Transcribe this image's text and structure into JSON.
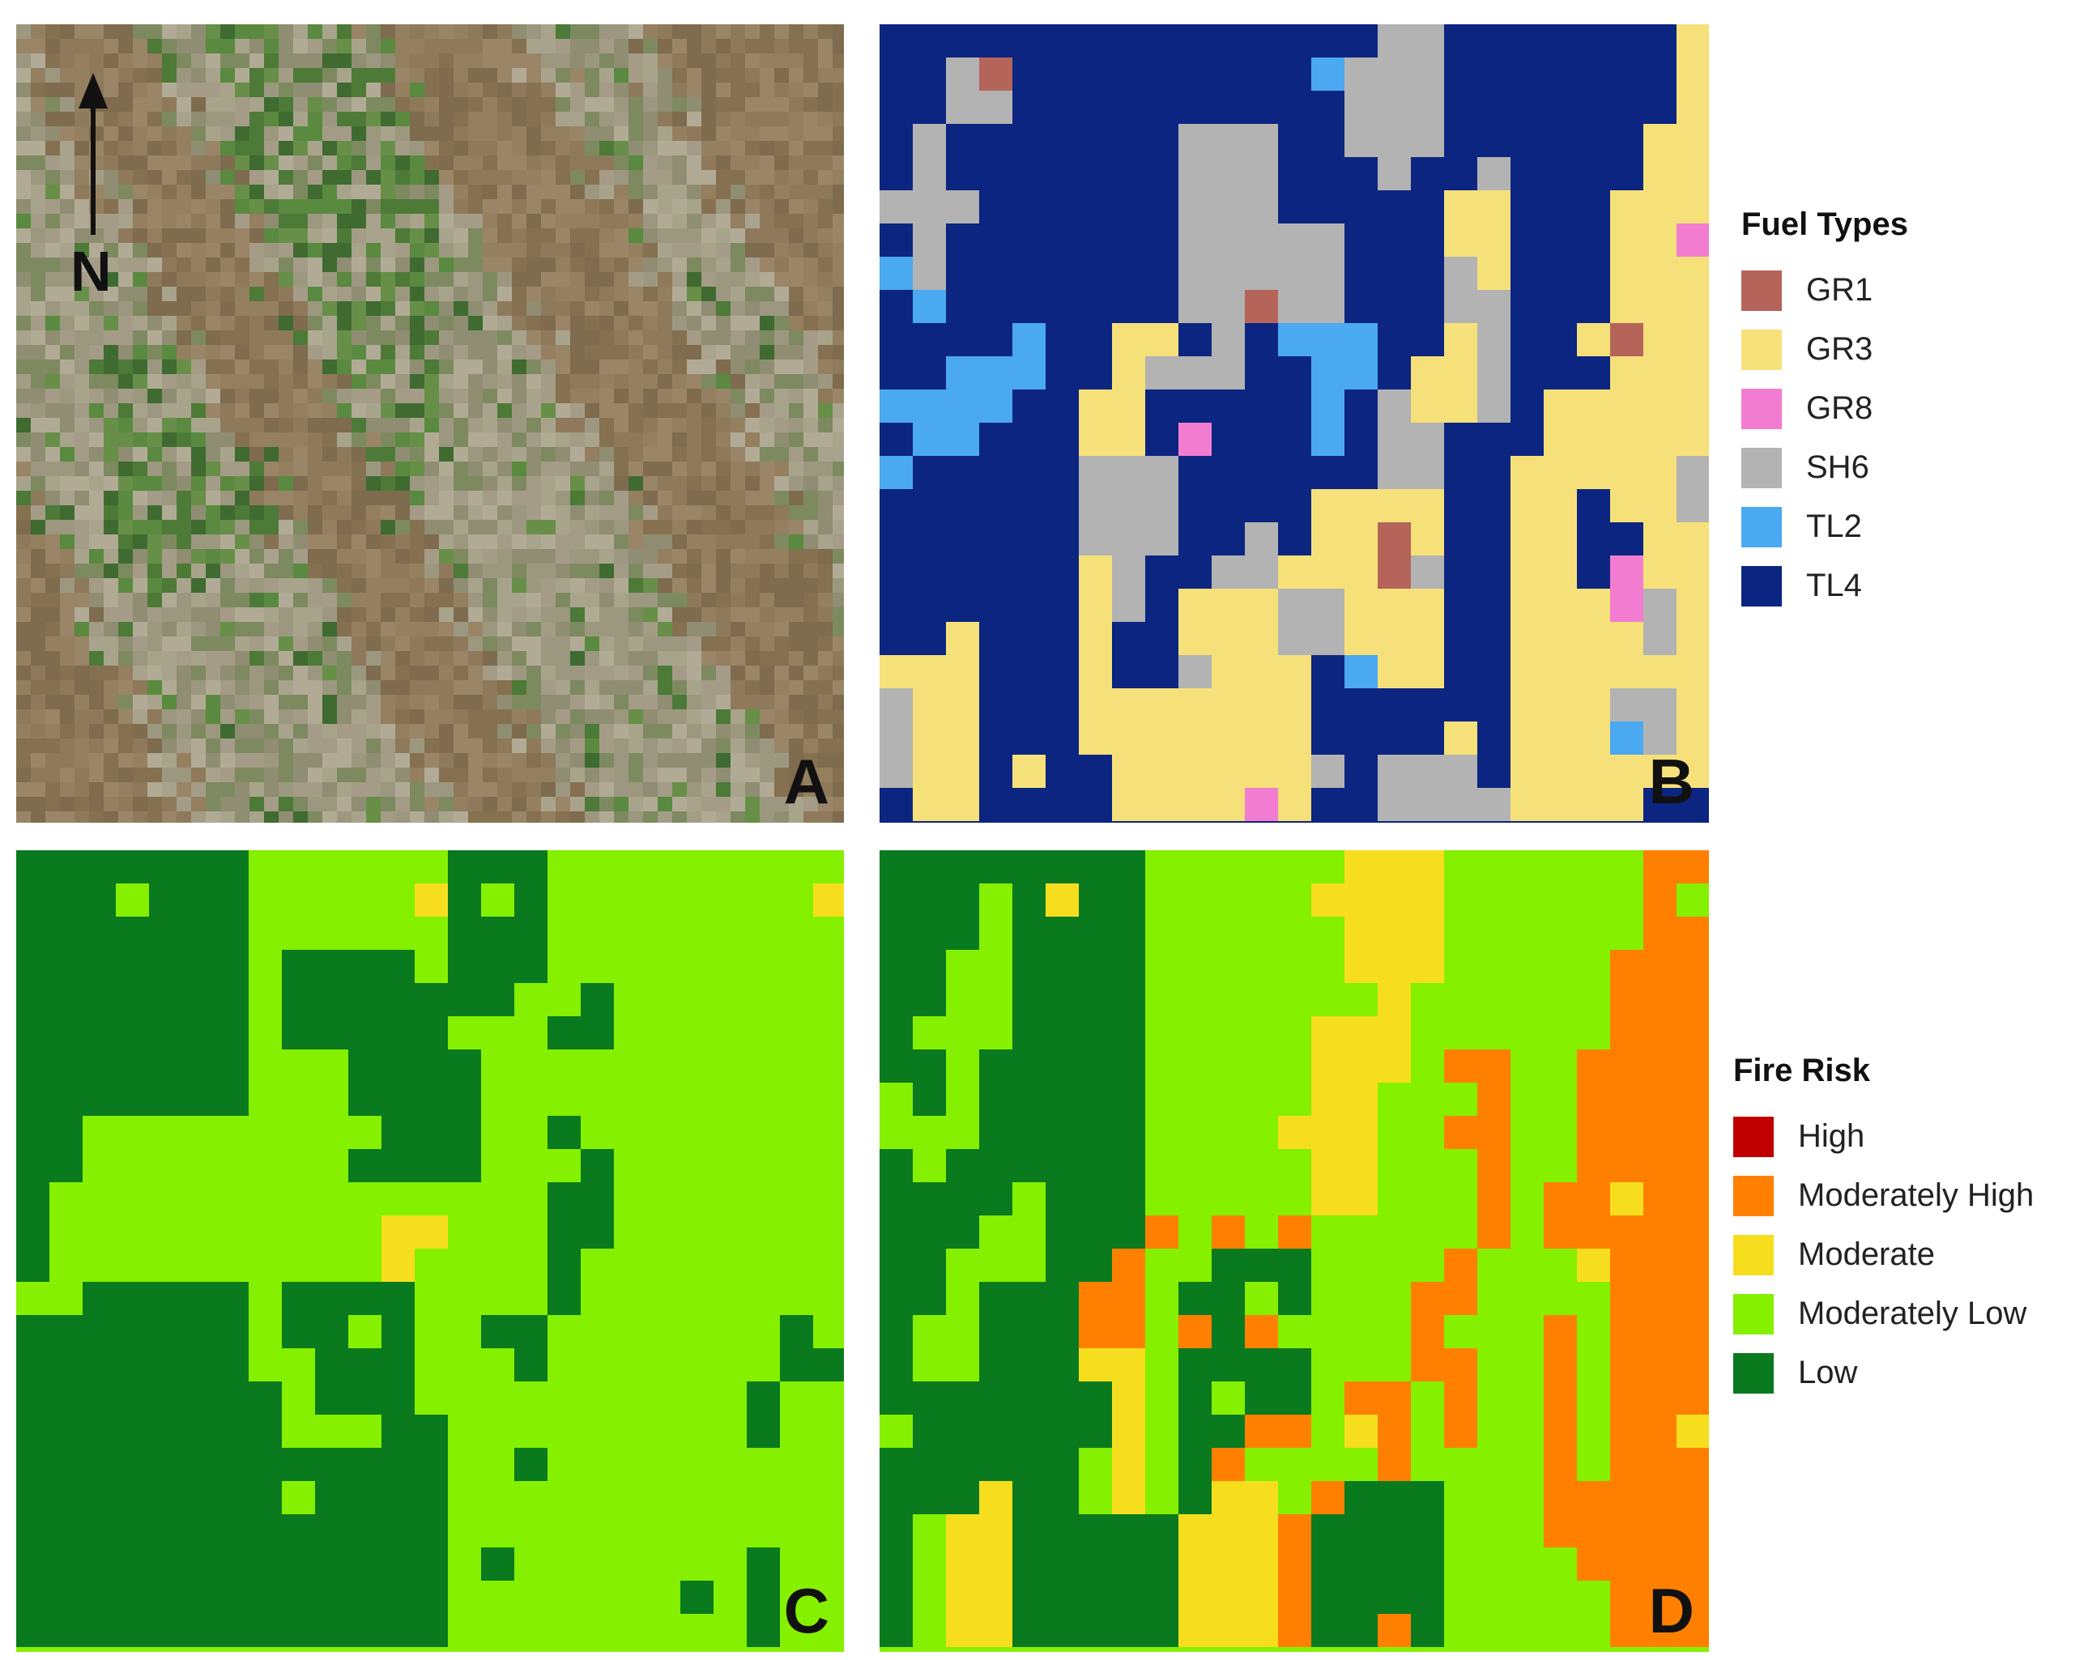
{
  "panels": {
    "a": {
      "label": "A",
      "north": "N"
    },
    "b": {
      "label": "B"
    },
    "c": {
      "label": "C"
    },
    "d": {
      "label": "D"
    }
  },
  "fuel_legend": {
    "title": "Fuel Types",
    "items": [
      {
        "label": "GR1",
        "color": "#b5645a"
      },
      {
        "label": "GR3",
        "color": "#f6e07a"
      },
      {
        "label": "GR8",
        "color": "#f27dd0"
      },
      {
        "label": "SH6",
        "color": "#b3b3b3"
      },
      {
        "label": "TL2",
        "color": "#4aa9f0"
      },
      {
        "label": "TL4",
        "color": "#0c2580"
      }
    ]
  },
  "risk_legend": {
    "title": "Fire Risk",
    "items": [
      {
        "label": "High",
        "color": "#c00000"
      },
      {
        "label": "Moderately High",
        "color": "#ff8000"
      },
      {
        "label": "Moderate",
        "color": "#f6de1e"
      },
      {
        "label": "Moderately Low",
        "color": "#85f000"
      },
      {
        "label": "Low",
        "color": "#0a7a1f"
      }
    ]
  }
}
